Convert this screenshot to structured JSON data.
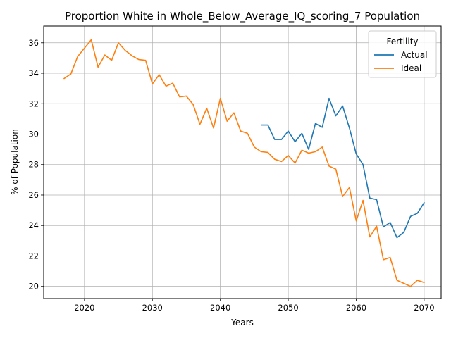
{
  "chart_data": {
    "type": "line",
    "title": "Proportion White in Whole_Below_Average_IQ_scoring_7 Population",
    "xlabel": "Years",
    "ylabel": "% of Population",
    "xlim": [
      2014,
      2072.5
    ],
    "ylim": [
      19.2,
      37.1
    ],
    "xticks": [
      2020,
      2030,
      2040,
      2050,
      2060,
      2070
    ],
    "yticks": [
      20,
      22,
      24,
      26,
      28,
      30,
      32,
      34,
      36
    ],
    "grid": true,
    "legend": {
      "title": "Fertility",
      "position": "top-right"
    },
    "series": [
      {
        "name": "Actual",
        "color": "#1f77b4",
        "x": [
          2046,
          2047,
          2048,
          2049,
          2050,
          2051,
          2052,
          2053,
          2054,
          2055,
          2056,
          2057,
          2058,
          2059,
          2060,
          2061,
          2062,
          2063,
          2064,
          2065,
          2066,
          2067,
          2068,
          2069,
          2070
        ],
        "y": [
          30.6,
          30.6,
          29.65,
          29.65,
          30.2,
          29.5,
          30.05,
          29.0,
          30.7,
          30.45,
          32.35,
          31.2,
          31.85,
          30.4,
          28.7,
          28.0,
          25.8,
          25.7,
          23.9,
          24.2,
          23.2,
          23.55,
          24.6,
          24.8,
          25.5
        ]
      },
      {
        "name": "Ideal",
        "color": "#ff7f0e",
        "x": [
          2017,
          2018,
          2019,
          2020,
          2021,
          2022,
          2023,
          2024,
          2025,
          2026,
          2027,
          2028,
          2029,
          2030,
          2031,
          2032,
          2033,
          2034,
          2035,
          2036,
          2037,
          2038,
          2039,
          2040,
          2041,
          2042,
          2043,
          2044,
          2045,
          2046,
          2047,
          2048,
          2049,
          2050,
          2051,
          2052,
          2053,
          2054,
          2055,
          2056,
          2057,
          2058,
          2059,
          2060,
          2061,
          2062,
          2063,
          2064,
          2065,
          2066,
          2067,
          2068,
          2069,
          2070
        ],
        "y": [
          33.65,
          33.95,
          35.1,
          35.65,
          36.2,
          34.4,
          35.2,
          34.85,
          36.0,
          35.5,
          35.15,
          34.9,
          34.85,
          33.3,
          33.9,
          33.15,
          33.35,
          32.45,
          32.5,
          31.95,
          30.65,
          31.7,
          30.4,
          32.35,
          30.85,
          31.4,
          30.2,
          30.05,
          29.15,
          28.85,
          28.8,
          28.35,
          28.2,
          28.6,
          28.1,
          28.95,
          28.75,
          28.85,
          29.15,
          27.9,
          27.7,
          25.9,
          26.5,
          24.3,
          25.65,
          23.25,
          23.95,
          21.75,
          21.9,
          20.4,
          20.2,
          20.0,
          20.4,
          20.25
        ]
      }
    ]
  }
}
